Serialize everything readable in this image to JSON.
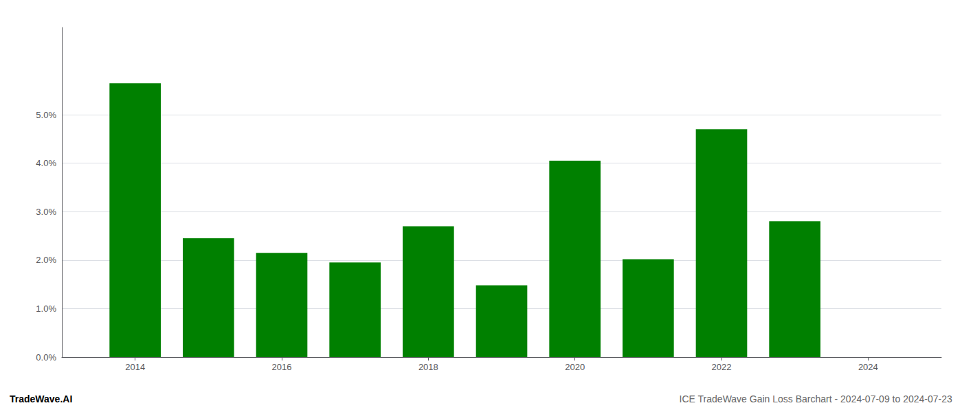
{
  "chart_data": {
    "type": "bar",
    "x": [
      2014,
      2015,
      2016,
      2017,
      2018,
      2019,
      2020,
      2021,
      2022,
      2023
    ],
    "values": [
      0.0565,
      0.0245,
      0.0215,
      0.0195,
      0.027,
      0.0148,
      0.0405,
      0.0202,
      0.047,
      0.028
    ],
    "color": "#008000",
    "xlim": [
      2013.0,
      2025.0
    ],
    "xticks": [
      2014,
      2016,
      2018,
      2020,
      2022,
      2024
    ],
    "ylim": [
      0,
      0.068
    ],
    "yticks": [
      {
        "value": 0.0,
        "label": "0.0%"
      },
      {
        "value": 0.01,
        "label": "1.0%"
      },
      {
        "value": 0.02,
        "label": "2.0%"
      },
      {
        "value": 0.03,
        "label": "3.0%"
      },
      {
        "value": 0.04,
        "label": "4.0%"
      },
      {
        "value": 0.05,
        "label": "5.0%"
      }
    ],
    "grid": true,
    "annotations": [
      "TradeWave.AI",
      "ICE TradeWave Gain Loss Barchart - 2024-07-09 to 2024-07-23"
    ]
  }
}
